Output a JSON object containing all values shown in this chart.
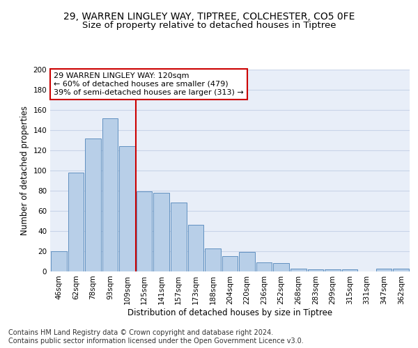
{
  "title_line1": "29, WARREN LINGLEY WAY, TIPTREE, COLCHESTER, CO5 0FE",
  "title_line2": "Size of property relative to detached houses in Tiptree",
  "xlabel": "Distribution of detached houses by size in Tiptree",
  "ylabel": "Number of detached properties",
  "categories": [
    "46sqm",
    "62sqm",
    "78sqm",
    "93sqm",
    "109sqm",
    "125sqm",
    "141sqm",
    "157sqm",
    "173sqm",
    "188sqm",
    "204sqm",
    "220sqm",
    "236sqm",
    "252sqm",
    "268sqm",
    "283sqm",
    "299sqm",
    "315sqm",
    "331sqm",
    "347sqm",
    "362sqm"
  ],
  "values": [
    20,
    98,
    132,
    152,
    124,
    79,
    78,
    68,
    46,
    23,
    15,
    19,
    9,
    8,
    3,
    2,
    2,
    2,
    0,
    3,
    3
  ],
  "bar_color": "#b8cfe8",
  "bar_edge_color": "#6090c0",
  "vline_x_index": 4.5,
  "vline_color": "#cc0000",
  "annotation_text": "29 WARREN LINGLEY WAY: 120sqm\n← 60% of detached houses are smaller (479)\n39% of semi-detached houses are larger (313) →",
  "annotation_box_color": "#ffffff",
  "annotation_box_edge": "#cc0000",
  "ylim": [
    0,
    200
  ],
  "yticks": [
    0,
    20,
    40,
    60,
    80,
    100,
    120,
    140,
    160,
    180,
    200
  ],
  "grid_color": "#c8d4e8",
  "background_color": "#e8eef8",
  "footer_line1": "Contains HM Land Registry data © Crown copyright and database right 2024.",
  "footer_line2": "Contains public sector information licensed under the Open Government Licence v3.0.",
  "title_fontsize": 10,
  "subtitle_fontsize": 9.5,
  "axis_label_fontsize": 8.5,
  "tick_fontsize": 7.5,
  "annotation_fontsize": 8,
  "footer_fontsize": 7
}
